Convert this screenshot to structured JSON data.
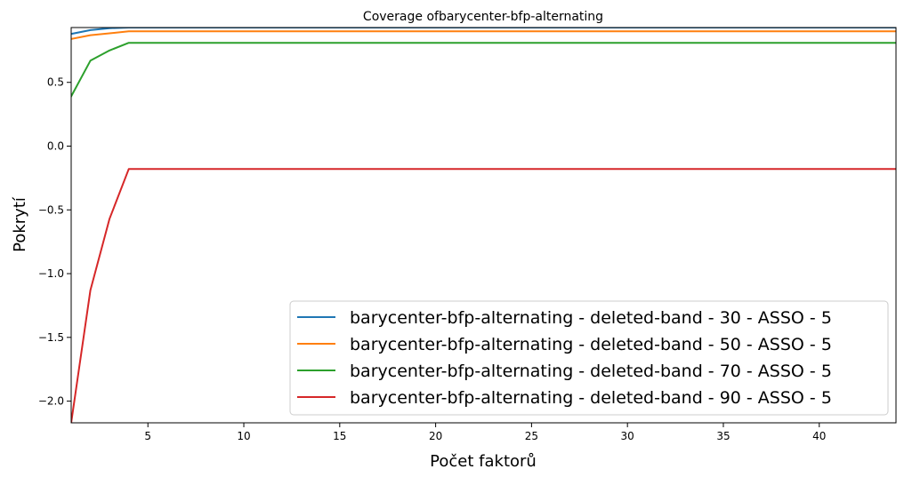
{
  "chart_data": {
    "type": "line",
    "title": "Coverage ofbarycenter-bfp-alternating",
    "xlabel": "Počet faktorů",
    "ylabel": "Pokrytí",
    "xlim": [
      1,
      44
    ],
    "ylim": [
      -2.17,
      0.93
    ],
    "xticks": [
      5,
      10,
      15,
      20,
      25,
      30,
      35,
      40
    ],
    "yticks": [
      0.5,
      0.0,
      -0.5,
      -1.0,
      -1.5,
      -2.0
    ],
    "xtick_labels": [
      "5",
      "10",
      "15",
      "20",
      "25",
      "30",
      "35",
      "40"
    ],
    "ytick_labels": [
      "0.5",
      "0.0",
      "−0.5",
      "−1.0",
      "−1.5",
      "−2.0"
    ],
    "grid": false,
    "legend_position": "bottom-right",
    "x": [
      1,
      2,
      3,
      4,
      44
    ],
    "series": [
      {
        "name": "barycenter-bfp-alternating - deleted-band - 30 - ASSO - 5",
        "color": "#1f77b4",
        "values": [
          0.88,
          0.91,
          0.925,
          0.93,
          0.93
        ]
      },
      {
        "name": "barycenter-bfp-alternating - deleted-band - 50 - ASSO - 5",
        "color": "#ff7f0e",
        "values": [
          0.84,
          0.87,
          0.885,
          0.9,
          0.9
        ]
      },
      {
        "name": "barycenter-bfp-alternating - deleted-band - 70 - ASSO - 5",
        "color": "#2ca02c",
        "values": [
          0.39,
          0.67,
          0.75,
          0.81,
          0.81
        ]
      },
      {
        "name": "barycenter-bfp-alternating - deleted-band - 90 - ASSO - 5",
        "color": "#d62728",
        "values": [
          -2.17,
          -1.13,
          -0.57,
          -0.18,
          -0.18
        ]
      }
    ]
  }
}
